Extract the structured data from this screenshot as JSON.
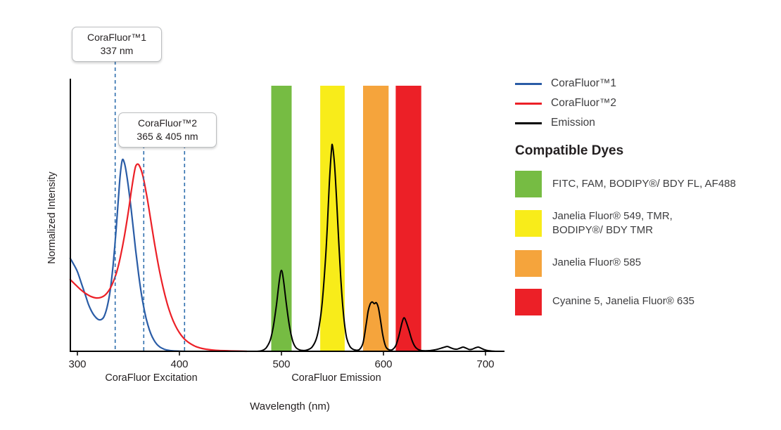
{
  "colors": {
    "background": "#ffffff",
    "axis": "#000000",
    "text": "#231f20",
    "guide_dash": "#2f6fae",
    "corafluor1_blue": "#2a5ca6",
    "corafluor2_red": "#ec2027",
    "emission_black": "#000000",
    "band_green": "#76bc43",
    "band_yellow": "#f8ec1a",
    "band_orange": "#f5a43c",
    "band_red": "#ec2027"
  },
  "callouts": [
    {
      "title": "CoraFluor™1",
      "value": "337 nm"
    },
    {
      "title": "CoraFluor™2",
      "value": "365 & 405 nm"
    }
  ],
  "legend": {
    "series": [
      {
        "label": "CoraFluor™1",
        "color": "#2a5ca6"
      },
      {
        "label": "CoraFluor™2",
        "color": "#ec2027"
      },
      {
        "label": "Emission",
        "color": "#000000"
      }
    ],
    "compatible_dyes_title": "Compatible Dyes",
    "compatible_dyes": [
      {
        "label": "FITC, FAM, BODIPY®/ BDY FL, AF488",
        "swatch_color": "#76bc43"
      },
      {
        "label": "Janelia Fluor® 549, TMR,\nBODIPY®/ BDY TMR",
        "swatch_color": "#f8ec1a"
      },
      {
        "label": "Janelia Fluor® 585",
        "swatch_color": "#f5a43c"
      },
      {
        "label": "Cyanine 5, Janelia Fluor® 635",
        "swatch_color": "#ec2027"
      }
    ]
  },
  "chart_data": {
    "type": "line",
    "title": "",
    "xlabel": "Wavelength (nm)",
    "ylabel": "Normalized Intensity",
    "x_range": [
      293,
      718
    ],
    "y_range": [
      0,
      1.0
    ],
    "x_ticks": [
      300,
      400,
      500,
      600,
      700
    ],
    "grid": false,
    "legend_position": "right",
    "section_labels": [
      {
        "text": "CoraFluor Excitation",
        "center_nm": 372
      },
      {
        "text": "CoraFluor Emission",
        "center_nm": 553
      }
    ],
    "dashed_guides_nm": [
      337,
      365,
      405
    ],
    "filter_bands": [
      {
        "name": "green",
        "from_nm": 490,
        "to_nm": 510,
        "color": "#76bc43"
      },
      {
        "name": "yellow",
        "from_nm": 538,
        "to_nm": 562,
        "color": "#f8ec1a"
      },
      {
        "name": "orange",
        "from_nm": 580,
        "to_nm": 605,
        "color": "#f5a43c"
      },
      {
        "name": "red",
        "from_nm": 612,
        "to_nm": 637,
        "color": "#ec2027"
      }
    ],
    "series": [
      {
        "id": "corafluor1_excitation",
        "name": "CoraFluor™1",
        "color": "#2a5ca6",
        "stroke_width": 2.2,
        "points": [
          [
            293,
            0.35
          ],
          [
            296,
            0.33
          ],
          [
            300,
            0.3
          ],
          [
            304,
            0.255
          ],
          [
            308,
            0.21
          ],
          [
            311,
            0.175
          ],
          [
            314,
            0.15
          ],
          [
            317,
            0.132
          ],
          [
            320,
            0.121
          ],
          [
            323,
            0.119
          ],
          [
            326,
            0.13
          ],
          [
            329,
            0.165
          ],
          [
            332,
            0.225
          ],
          [
            335,
            0.325
          ],
          [
            338,
            0.46
          ],
          [
            340,
            0.565
          ],
          [
            342,
            0.665
          ],
          [
            344,
            0.72
          ],
          [
            346,
            0.71
          ],
          [
            348,
            0.672
          ],
          [
            351,
            0.59
          ],
          [
            354,
            0.49
          ],
          [
            357,
            0.385
          ],
          [
            360,
            0.29
          ],
          [
            363,
            0.21
          ],
          [
            366,
            0.147
          ],
          [
            369,
            0.1
          ],
          [
            372,
            0.066
          ],
          [
            375,
            0.042
          ],
          [
            378,
            0.026
          ],
          [
            381,
            0.016
          ],
          [
            385,
            0.008
          ],
          [
            389,
            0.004
          ],
          [
            393,
            0.002
          ],
          [
            398,
            0.001
          ],
          [
            404,
            0
          ]
        ]
      },
      {
        "id": "corafluor2_excitation",
        "name": "CoraFluor™2",
        "color": "#ec2027",
        "stroke_width": 2.2,
        "points": [
          [
            293,
            0.27
          ],
          [
            298,
            0.251
          ],
          [
            303,
            0.233
          ],
          [
            308,
            0.218
          ],
          [
            313,
            0.207
          ],
          [
            318,
            0.201
          ],
          [
            323,
            0.203
          ],
          [
            328,
            0.215
          ],
          [
            333,
            0.243
          ],
          [
            338,
            0.292
          ],
          [
            342,
            0.353
          ],
          [
            346,
            0.432
          ],
          [
            350,
            0.527
          ],
          [
            353,
            0.607
          ],
          [
            355,
            0.657
          ],
          [
            357,
            0.695
          ],
          [
            359,
            0.705
          ],
          [
            361,
            0.697
          ],
          [
            364,
            0.663
          ],
          [
            367,
            0.607
          ],
          [
            370,
            0.54
          ],
          [
            373,
            0.468
          ],
          [
            376,
            0.397
          ],
          [
            380,
            0.312
          ],
          [
            384,
            0.24
          ],
          [
            388,
            0.18
          ],
          [
            392,
            0.133
          ],
          [
            396,
            0.097
          ],
          [
            400,
            0.07
          ],
          [
            404,
            0.05
          ],
          [
            408,
            0.036
          ],
          [
            412,
            0.026
          ],
          [
            416,
            0.018
          ],
          [
            421,
            0.012
          ],
          [
            426,
            0.008
          ],
          [
            432,
            0.005
          ],
          [
            439,
            0.003
          ],
          [
            447,
            0.002
          ],
          [
            456,
            0.001
          ],
          [
            466,
            0
          ]
        ]
      },
      {
        "id": "emission",
        "name": "Emission",
        "color": "#000000",
        "stroke_width": 2,
        "points": [
          [
            476,
            0
          ],
          [
            481,
            0.003
          ],
          [
            485,
            0.013
          ],
          [
            489,
            0.042
          ],
          [
            492,
            0.092
          ],
          [
            495,
            0.172
          ],
          [
            498,
            0.268
          ],
          [
            500,
            0.305
          ],
          [
            502,
            0.268
          ],
          [
            505,
            0.172
          ],
          [
            508,
            0.092
          ],
          [
            511,
            0.04
          ],
          [
            514,
            0.015
          ],
          [
            518,
            0.005
          ],
          [
            522,
            0.003
          ],
          [
            526,
            0.006
          ],
          [
            530,
            0.016
          ],
          [
            534,
            0.045
          ],
          [
            537,
            0.095
          ],
          [
            540,
            0.185
          ],
          [
            543,
            0.335
          ],
          [
            545,
            0.475
          ],
          [
            547,
            0.635
          ],
          [
            549,
            0.757
          ],
          [
            550,
            0.775
          ],
          [
            552,
            0.705
          ],
          [
            554,
            0.575
          ],
          [
            556,
            0.425
          ],
          [
            558,
            0.285
          ],
          [
            560,
            0.175
          ],
          [
            562,
            0.098
          ],
          [
            564,
            0.049
          ],
          [
            567,
            0.019
          ],
          [
            570,
            0.008
          ],
          [
            574,
            0.004
          ],
          [
            577,
            0.009
          ],
          [
            580,
            0.032
          ],
          [
            583,
            0.1
          ],
          [
            585,
            0.152
          ],
          [
            587,
            0.178
          ],
          [
            589,
            0.186
          ],
          [
            591,
            0.179
          ],
          [
            593,
            0.183
          ],
          [
            595,
            0.164
          ],
          [
            597,
            0.12
          ],
          [
            599,
            0.069
          ],
          [
            601,
            0.032
          ],
          [
            603,
            0.013
          ],
          [
            606,
            0.005
          ],
          [
            609,
            0.007
          ],
          [
            612,
            0.021
          ],
          [
            615,
            0.057
          ],
          [
            618,
            0.105
          ],
          [
            620,
            0.126
          ],
          [
            622,
            0.114
          ],
          [
            625,
            0.079
          ],
          [
            628,
            0.041
          ],
          [
            631,
            0.017
          ],
          [
            634,
            0.007
          ],
          [
            637,
            0.003
          ],
          [
            641,
            0.002
          ],
          [
            646,
            0.003
          ],
          [
            651,
            0.006
          ],
          [
            656,
            0.011
          ],
          [
            660,
            0.016
          ],
          [
            663,
            0.018
          ],
          [
            666,
            0.013
          ],
          [
            669,
            0.009
          ],
          [
            672,
            0.008
          ],
          [
            675,
            0.012
          ],
          [
            678,
            0.016
          ],
          [
            681,
            0.012
          ],
          [
            684,
            0.007
          ],
          [
            687,
            0.008
          ],
          [
            690,
            0.013
          ],
          [
            693,
            0.016
          ],
          [
            696,
            0.011
          ],
          [
            699,
            0.006
          ],
          [
            702,
            0.003
          ],
          [
            706,
            0.001
          ],
          [
            710,
            0
          ]
        ]
      }
    ]
  }
}
